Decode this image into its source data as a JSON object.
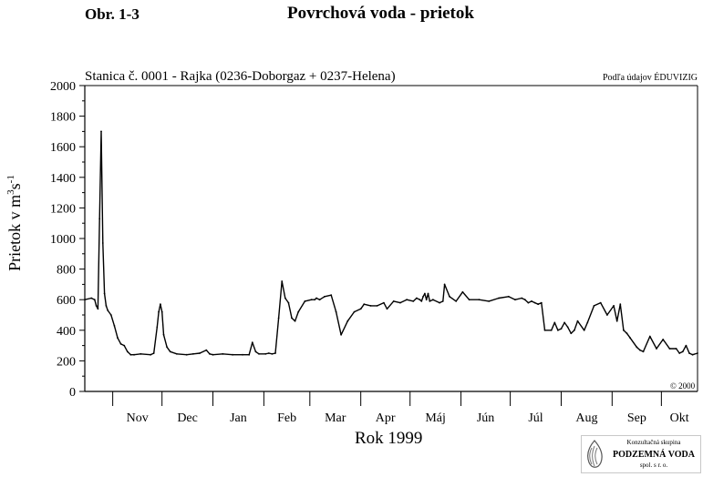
{
  "header": {
    "figure_number": "Obr. 1-3",
    "title": "Povrchová voda - prietok"
  },
  "chart_data": {
    "type": "line",
    "title": "Stanica č. 0001 - Rajka (0236-Doborgaz + 0237-Helena)",
    "source_note": "Podľa údajov ÉDUVIZIG",
    "copyright": "© 2000",
    "ylabel_main": "Prietok v m",
    "ylabel_sup1": "3",
    "ylabel_mid": "s",
    "ylabel_sup2": "-1",
    "xlabel": "Rok 1999",
    "ylim": [
      0,
      2000
    ],
    "yticks": [
      "0",
      "200",
      "400",
      "600",
      "800",
      "1000",
      "1200",
      "1400",
      "1600",
      "1800",
      "2000"
    ],
    "x_unit": "day",
    "x_start": "1998-10-15",
    "xlim": [
      0,
      373
    ],
    "months": [
      "Nov",
      "Dec",
      "Jan",
      "Feb",
      "Mar",
      "Apr",
      "Máj",
      "Jún",
      "Júl",
      "Aug",
      "Sep",
      "Okt"
    ],
    "month_start_days": [
      17,
      47,
      78,
      109,
      137,
      168,
      198,
      229,
      259,
      290,
      321,
      351
    ],
    "grid": false,
    "legend": "none",
    "line_color": "#000000",
    "series": [
      {
        "x": [
          0,
          4,
          6,
          7,
          8,
          9,
          10,
          11,
          12,
          13,
          14,
          16,
          18,
          20,
          22,
          24,
          26,
          28,
          30,
          34,
          40,
          42,
          44,
          45,
          46,
          47,
          48,
          50,
          52,
          56,
          62,
          66,
          70,
          74,
          76,
          78,
          84,
          90,
          96,
          100,
          102,
          104,
          106,
          110,
          112,
          114,
          116,
          118,
          120,
          122,
          124,
          126,
          128,
          130,
          134,
          138,
          140,
          141,
          143,
          146,
          150,
          153,
          156,
          160,
          164,
          168,
          170,
          174,
          178,
          182,
          184,
          188,
          192,
          196,
          200,
          202,
          204,
          205,
          206,
          207,
          208,
          209,
          210,
          212,
          216,
          218,
          219,
          222,
          226,
          230,
          234,
          240,
          246,
          252,
          258,
          262,
          266,
          268,
          270,
          272,
          274,
          276,
          278,
          280,
          284,
          286,
          288,
          290,
          292,
          294,
          296,
          298,
          300,
          304,
          306,
          310,
          314,
          318,
          322,
          324,
          326,
          328,
          330,
          332,
          336,
          338,
          340,
          344,
          348,
          352,
          356,
          360,
          362,
          364,
          366,
          368,
          370,
          373
        ],
        "values": [
          600,
          610,
          600,
          560,
          540,
          1130,
          1700,
          970,
          640,
          560,
          530,
          500,
          430,
          350,
          310,
          300,
          260,
          240,
          240,
          245,
          240,
          250,
          420,
          520,
          570,
          520,
          370,
          290,
          260,
          245,
          240,
          245,
          250,
          270,
          245,
          240,
          245,
          240,
          240,
          240,
          320,
          260,
          245,
          245,
          250,
          245,
          250,
          480,
          720,
          610,
          580,
          480,
          460,
          520,
          590,
          600,
          600,
          610,
          600,
          620,
          630,
          520,
          370,
          460,
          520,
          540,
          570,
          560,
          560,
          580,
          540,
          590,
          580,
          600,
          590,
          610,
          600,
          590,
          620,
          640,
          600,
          640,
          590,
          600,
          580,
          590,
          700,
          620,
          590,
          650,
          600,
          600,
          590,
          610,
          620,
          600,
          610,
          600,
          580,
          590,
          580,
          570,
          580,
          400,
          400,
          450,
          400,
          410,
          450,
          420,
          380,
          400,
          460,
          400,
          450,
          560,
          580,
          500,
          560,
          460,
          570,
          400,
          380,
          350,
          290,
          270,
          260,
          360,
          280,
          340,
          280,
          280,
          250,
          260,
          300,
          250,
          240,
          250
        ]
      }
    ]
  },
  "logo": {
    "line1": "Konzultačná skupina",
    "line2": "PODZEMNÁ VODA",
    "line3": "spol. s r. o."
  }
}
